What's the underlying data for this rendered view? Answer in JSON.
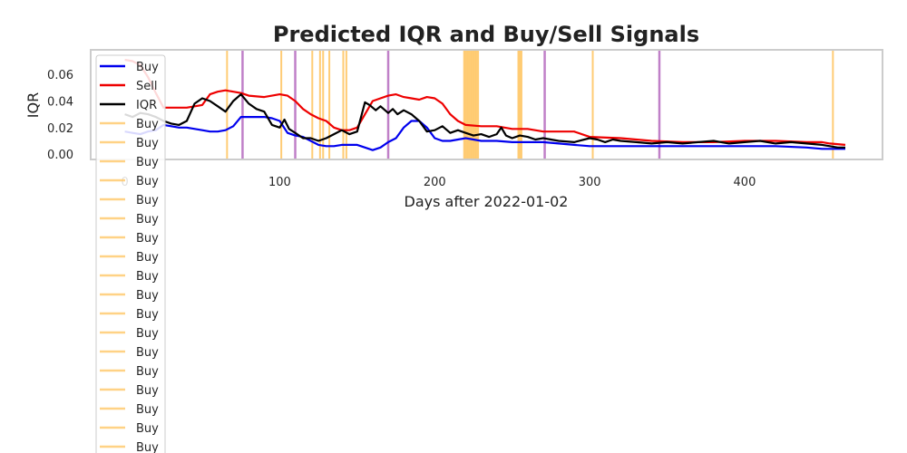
{
  "chart_data": {
    "type": "line",
    "title": "Predicted IQR and Buy/Sell Signals",
    "xlabel": "Days after 2022-01-02",
    "ylabel": "IQR",
    "xlim": [
      -22,
      489
    ],
    "ylim": [
      -0.004,
      0.0785
    ],
    "x_ticks": [
      0,
      100,
      200,
      300,
      400
    ],
    "x_tick_labels": [
      "0",
      "100",
      "200",
      "300",
      "400"
    ],
    "y_ticks": [
      0.0,
      0.02,
      0.04,
      0.06
    ],
    "y_tick_labels": [
      "0.00",
      "0.02",
      "0.04",
      "0.06"
    ],
    "grid": false,
    "legend_position": "upper-left",
    "colors": {
      "buy": "#0000ee",
      "sell": "#ee0000",
      "iqr": "#000000",
      "buy_signal": "#ffc766",
      "sell_signal": "#c080c8"
    },
    "series": [
      {
        "name": "Buy",
        "color": "#0000ee",
        "points": [
          [
            0,
            0.017
          ],
          [
            5,
            0.016
          ],
          [
            10,
            0.015
          ],
          [
            15,
            0.017
          ],
          [
            20,
            0.018
          ],
          [
            25,
            0.022
          ],
          [
            30,
            0.021
          ],
          [
            35,
            0.02
          ],
          [
            40,
            0.02
          ],
          [
            50,
            0.018
          ],
          [
            55,
            0.017
          ],
          [
            60,
            0.017
          ],
          [
            65,
            0.018
          ],
          [
            70,
            0.021
          ],
          [
            75,
            0.028
          ],
          [
            80,
            0.028
          ],
          [
            90,
            0.028
          ],
          [
            95,
            0.027
          ],
          [
            100,
            0.025
          ],
          [
            105,
            0.016
          ],
          [
            110,
            0.014
          ],
          [
            115,
            0.013
          ],
          [
            120,
            0.01
          ],
          [
            125,
            0.007
          ],
          [
            130,
            0.006
          ],
          [
            135,
            0.006
          ],
          [
            140,
            0.007
          ],
          [
            145,
            0.007
          ],
          [
            150,
            0.007
          ],
          [
            155,
            0.005
          ],
          [
            160,
            0.003
          ],
          [
            165,
            0.005
          ],
          [
            170,
            0.009
          ],
          [
            175,
            0.012
          ],
          [
            180,
            0.02
          ],
          [
            185,
            0.025
          ],
          [
            190,
            0.025
          ],
          [
            195,
            0.02
          ],
          [
            200,
            0.012
          ],
          [
            205,
            0.01
          ],
          [
            210,
            0.01
          ],
          [
            215,
            0.011
          ],
          [
            220,
            0.012
          ],
          [
            230,
            0.01
          ],
          [
            240,
            0.01
          ],
          [
            250,
            0.009
          ],
          [
            260,
            0.009
          ],
          [
            270,
            0.009
          ],
          [
            280,
            0.008
          ],
          [
            290,
            0.007
          ],
          [
            300,
            0.006
          ],
          [
            320,
            0.006
          ],
          [
            340,
            0.006
          ],
          [
            360,
            0.006
          ],
          [
            380,
            0.006
          ],
          [
            400,
            0.006
          ],
          [
            420,
            0.006
          ],
          [
            440,
            0.005
          ],
          [
            450,
            0.004
          ],
          [
            460,
            0.004
          ],
          [
            465,
            0.004
          ]
        ]
      },
      {
        "name": "Sell",
        "color": "#ee0000",
        "points": [
          [
            0,
            0.071
          ],
          [
            5,
            0.07
          ],
          [
            10,
            0.067
          ],
          [
            15,
            0.058
          ],
          [
            20,
            0.046
          ],
          [
            25,
            0.035
          ],
          [
            30,
            0.035
          ],
          [
            40,
            0.035
          ],
          [
            50,
            0.037
          ],
          [
            55,
            0.045
          ],
          [
            60,
            0.047
          ],
          [
            65,
            0.048
          ],
          [
            70,
            0.047
          ],
          [
            75,
            0.046
          ],
          [
            80,
            0.044
          ],
          [
            90,
            0.043
          ],
          [
            95,
            0.044
          ],
          [
            100,
            0.045
          ],
          [
            105,
            0.044
          ],
          [
            110,
            0.04
          ],
          [
            115,
            0.034
          ],
          [
            120,
            0.03
          ],
          [
            125,
            0.027
          ],
          [
            130,
            0.025
          ],
          [
            135,
            0.02
          ],
          [
            140,
            0.018
          ],
          [
            145,
            0.018
          ],
          [
            150,
            0.02
          ],
          [
            155,
            0.03
          ],
          [
            160,
            0.04
          ],
          [
            165,
            0.042
          ],
          [
            170,
            0.044
          ],
          [
            175,
            0.045
          ],
          [
            180,
            0.043
          ],
          [
            185,
            0.042
          ],
          [
            190,
            0.041
          ],
          [
            195,
            0.043
          ],
          [
            200,
            0.042
          ],
          [
            205,
            0.038
          ],
          [
            210,
            0.03
          ],
          [
            215,
            0.025
          ],
          [
            220,
            0.022
          ],
          [
            230,
            0.021
          ],
          [
            240,
            0.021
          ],
          [
            250,
            0.019
          ],
          [
            260,
            0.019
          ],
          [
            270,
            0.017
          ],
          [
            290,
            0.017
          ],
          [
            300,
            0.013
          ],
          [
            320,
            0.012
          ],
          [
            340,
            0.01
          ],
          [
            360,
            0.009
          ],
          [
            380,
            0.009
          ],
          [
            400,
            0.01
          ],
          [
            420,
            0.01
          ],
          [
            440,
            0.009
          ],
          [
            450,
            0.009
          ],
          [
            455,
            0.008
          ],
          [
            465,
            0.007
          ]
        ]
      },
      {
        "name": "IQR",
        "color": "#000000",
        "points": [
          [
            0,
            0.03
          ],
          [
            5,
            0.028
          ],
          [
            10,
            0.031
          ],
          [
            15,
            0.03
          ],
          [
            20,
            0.028
          ],
          [
            25,
            0.025
          ],
          [
            30,
            0.023
          ],
          [
            35,
            0.022
          ],
          [
            40,
            0.025
          ],
          [
            45,
            0.038
          ],
          [
            50,
            0.042
          ],
          [
            55,
            0.04
          ],
          [
            60,
            0.036
          ],
          [
            65,
            0.032
          ],
          [
            70,
            0.04
          ],
          [
            75,
            0.045
          ],
          [
            80,
            0.038
          ],
          [
            85,
            0.034
          ],
          [
            90,
            0.032
          ],
          [
            95,
            0.022
          ],
          [
            100,
            0.02
          ],
          [
            103,
            0.026
          ],
          [
            106,
            0.019
          ],
          [
            110,
            0.016
          ],
          [
            115,
            0.012
          ],
          [
            120,
            0.012
          ],
          [
            125,
            0.01
          ],
          [
            130,
            0.012
          ],
          [
            135,
            0.015
          ],
          [
            140,
            0.018
          ],
          [
            145,
            0.015
          ],
          [
            150,
            0.017
          ],
          [
            155,
            0.039
          ],
          [
            158,
            0.037
          ],
          [
            162,
            0.033
          ],
          [
            165,
            0.036
          ],
          [
            170,
            0.031
          ],
          [
            173,
            0.034
          ],
          [
            176,
            0.03
          ],
          [
            180,
            0.033
          ],
          [
            185,
            0.03
          ],
          [
            190,
            0.025
          ],
          [
            195,
            0.017
          ],
          [
            200,
            0.018
          ],
          [
            205,
            0.021
          ],
          [
            210,
            0.016
          ],
          [
            215,
            0.018
          ],
          [
            220,
            0.016
          ],
          [
            225,
            0.014
          ],
          [
            230,
            0.015
          ],
          [
            235,
            0.013
          ],
          [
            240,
            0.015
          ],
          [
            243,
            0.02
          ],
          [
            246,
            0.014
          ],
          [
            250,
            0.012
          ],
          [
            255,
            0.014
          ],
          [
            260,
            0.013
          ],
          [
            265,
            0.011
          ],
          [
            270,
            0.012
          ],
          [
            280,
            0.01
          ],
          [
            290,
            0.009
          ],
          [
            300,
            0.012
          ],
          [
            305,
            0.011
          ],
          [
            310,
            0.009
          ],
          [
            315,
            0.011
          ],
          [
            320,
            0.01
          ],
          [
            330,
            0.009
          ],
          [
            340,
            0.008
          ],
          [
            350,
            0.009
          ],
          [
            360,
            0.008
          ],
          [
            370,
            0.009
          ],
          [
            380,
            0.01
          ],
          [
            390,
            0.008
          ],
          [
            400,
            0.009
          ],
          [
            410,
            0.01
          ],
          [
            420,
            0.008
          ],
          [
            430,
            0.009
          ],
          [
            440,
            0.008
          ],
          [
            450,
            0.007
          ],
          [
            455,
            0.006
          ],
          [
            460,
            0.005
          ],
          [
            465,
            0.005
          ]
        ]
      }
    ],
    "buy_signals": [
      66,
      101,
      121,
      126,
      128,
      132,
      141,
      143,
      219,
      220,
      221,
      222,
      223,
      224,
      225,
      226,
      227,
      228,
      254,
      255,
      256,
      302,
      457
    ],
    "sell_signals": [
      76,
      110,
      170,
      271,
      345
    ],
    "legend_entries": [
      "Buy",
      "Sell",
      "IQR",
      "Buy",
      "Buy",
      "Buy",
      "Buy",
      "Buy",
      "Buy",
      "Buy",
      "Buy",
      "Buy",
      "Buy",
      "Buy",
      "Buy",
      "Buy",
      "Buy",
      "Buy",
      "Buy",
      "Buy",
      "Buy"
    ]
  }
}
